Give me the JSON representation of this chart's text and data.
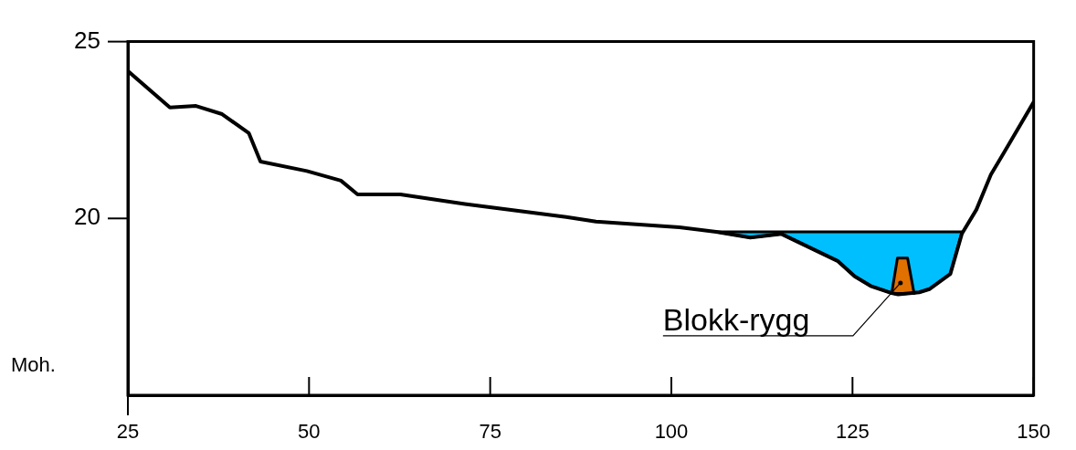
{
  "chart_data": {
    "type": "line",
    "ylabel": "Moh.",
    "xlim": [
      25,
      150
    ],
    "xticks": [
      25,
      50,
      75,
      100,
      125,
      150
    ],
    "ylim": [
      15,
      25
    ],
    "yticks": [
      25,
      20
    ],
    "grid": false,
    "legend": false,
    "marker": "none",
    "series": [
      {
        "color": "#000000",
        "x": [
          25,
          30.8,
          34.4,
          38,
          41.7,
          43.3,
          49.7,
          54.4,
          56.7,
          62.6,
          71.5,
          85.5,
          89.6,
          101.1,
          106.2,
          110.9,
          115.2,
          123,
          125.3,
          127.5,
          130.4,
          131.3,
          134.2,
          135.6,
          138.5,
          140.1,
          142.1,
          144.1,
          145.9,
          150
        ],
        "values": [
          24.17,
          23.14,
          23.18,
          22.95,
          22.41,
          21.61,
          21.34,
          21.07,
          20.68,
          20.68,
          20.41,
          20.04,
          19.91,
          19.75,
          19.62,
          19.46,
          19.56,
          18.79,
          18.36,
          18.09,
          17.89,
          17.85,
          17.91,
          18,
          18.43,
          19.57,
          20.25,
          21.24,
          21.86,
          23.29
        ]
      },
      {
        "type": "area",
        "color": "#00bfff",
        "x": [
          106.2,
          140.1,
          138.5,
          135.6,
          134.2,
          131.3,
          130.4,
          127.5,
          125.3,
          123,
          115.2,
          110.9,
          106.2
        ],
        "values": [
          19.62,
          19.62,
          18.43,
          18,
          17.91,
          17.85,
          17.89,
          18.09,
          18.36,
          18.79,
          19.56,
          19.46,
          19.62
        ]
      },
      {
        "type": "area",
        "color": "#e07000",
        "x": [
          130.4,
          131.2,
          132.6,
          133.5,
          130.4
        ],
        "values": [
          17.88,
          18.88,
          18.88,
          17.88,
          17.88
        ]
      }
    ],
    "annotations": [
      "Blokk-rygg"
    ]
  }
}
